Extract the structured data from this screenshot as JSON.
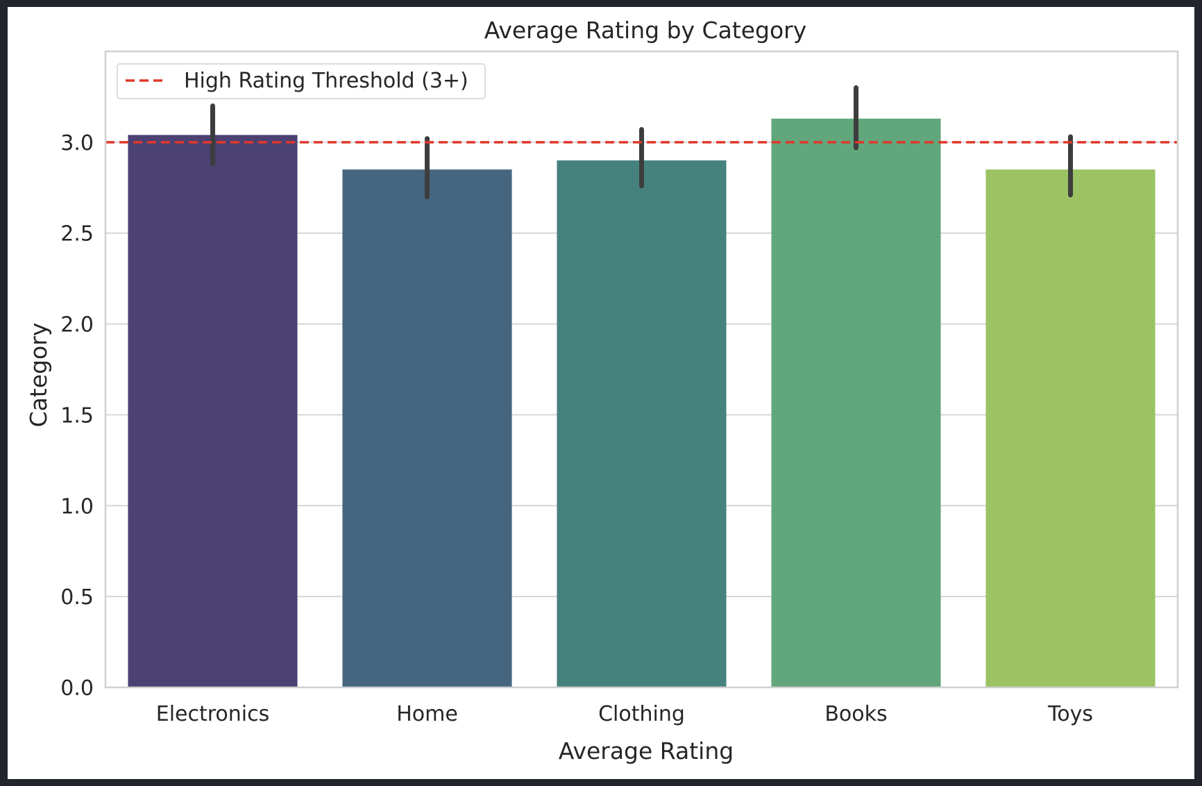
{
  "chart_data": {
    "type": "bar",
    "title": "Average Rating by Category",
    "xlabel": "Average Rating",
    "ylabel": "Category",
    "categories": [
      "Electronics",
      "Home",
      "Clothing",
      "Books",
      "Toys"
    ],
    "values": [
      3.04,
      2.85,
      2.9,
      3.13,
      2.85
    ],
    "error_low": [
      2.88,
      2.7,
      2.76,
      2.97,
      2.71
    ],
    "error_high": [
      3.2,
      3.02,
      3.07,
      3.3,
      3.03
    ],
    "colors": [
      "#4b4173",
      "#46667f",
      "#45827e",
      "#62a67c",
      "#9bc363"
    ],
    "ylim": [
      0,
      3.5
    ],
    "yticks": [
      "0.0",
      "0.5",
      "1.0",
      "1.5",
      "2.0",
      "2.5",
      "3.0"
    ],
    "grid": true,
    "threshold": {
      "value": 3.0,
      "label": "High Rating Threshold (3+)",
      "color": "#e0382b",
      "style": "dashed"
    },
    "legend_placement": "top-left"
  }
}
